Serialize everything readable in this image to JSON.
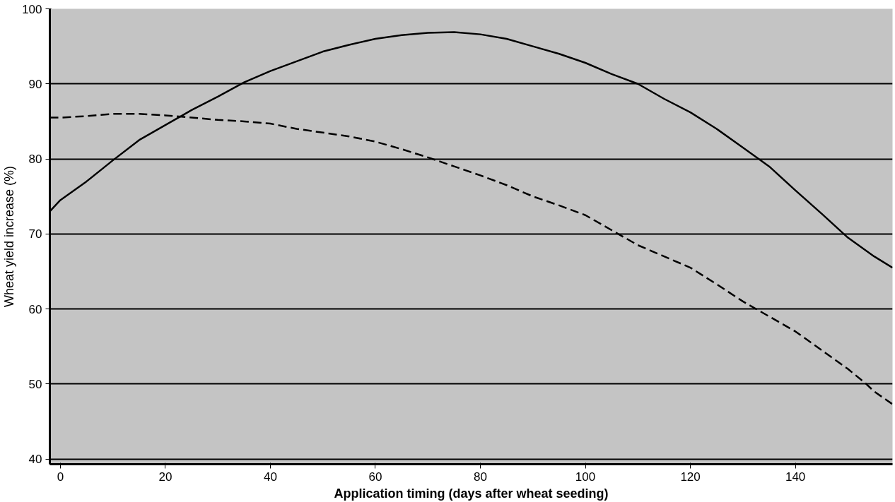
{
  "chart_data": {
    "type": "line",
    "xlabel": "Application timing (days after wheat seeding)",
    "ylabel": "Wheat yield increase (%)",
    "xlim": [
      -2,
      158.5
    ],
    "ylim": [
      39.3,
      100
    ],
    "xticks": [
      0,
      20,
      40,
      60,
      80,
      100,
      120,
      140
    ],
    "yticks": [
      40,
      50,
      60,
      70,
      80,
      90,
      100
    ],
    "grid": "y",
    "marker": "none",
    "series": [
      {
        "color": "#000000",
        "line_style": "solid",
        "x": [
          -2,
          0,
          5,
          10,
          15,
          20,
          25,
          30,
          35,
          40,
          45,
          50,
          55,
          60,
          65,
          70,
          75,
          80,
          85,
          90,
          95,
          100,
          105,
          110,
          115,
          120,
          125,
          130,
          135,
          140,
          145,
          150,
          155,
          158.5
        ],
        "values": [
          73,
          74.5,
          77,
          79.8,
          82.5,
          84.5,
          86.5,
          88.3,
          90.2,
          91.7,
          93,
          94.3,
          95.2,
          96,
          96.5,
          96.8,
          96.9,
          96.6,
          96,
          95,
          94,
          92.8,
          91.3,
          90,
          88,
          86.2,
          84,
          81.5,
          79,
          75.8,
          72.7,
          69.5,
          67,
          65.5
        ]
      },
      {
        "color": "#000000",
        "line_style": "dashed",
        "x": [
          -2,
          0,
          5,
          10,
          15,
          20,
          25,
          30,
          35,
          40,
          45,
          50,
          55,
          60,
          65,
          70,
          75,
          80,
          85,
          90,
          95,
          100,
          105,
          110,
          115,
          120,
          125,
          130,
          135,
          140,
          145,
          150,
          153.5,
          155,
          158.5
        ],
        "values": [
          85.5,
          85.5,
          85.7,
          86,
          86,
          85.8,
          85.5,
          85.2,
          85,
          84.7,
          84,
          83.5,
          83,
          82.3,
          81.3,
          80.2,
          79,
          77.8,
          76.5,
          75,
          73.8,
          72.5,
          70.5,
          68.5,
          67,
          65.5,
          63.3,
          61,
          59,
          57,
          54.5,
          52,
          50,
          49,
          47.3
        ]
      }
    ]
  }
}
